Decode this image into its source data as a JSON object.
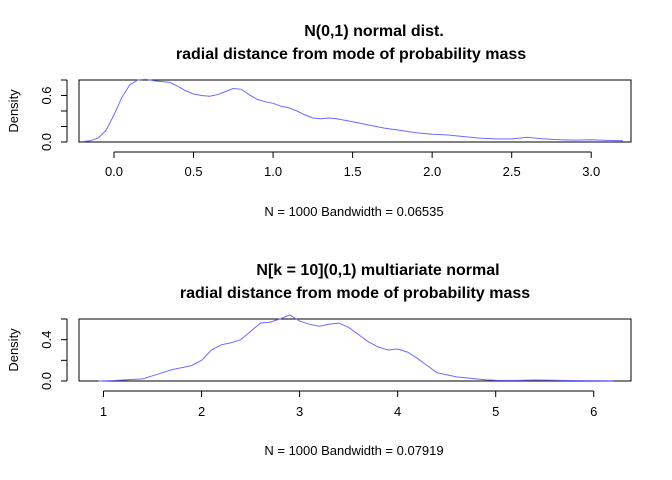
{
  "chart_data": [
    {
      "type": "line",
      "title": "N(0,1) normal dist.",
      "subtitle": "radial distance from mode of probability mass",
      "xlabel": "N = 1000   Bandwidth = 0.06535",
      "ylabel": "Density",
      "xlim": [
        -0.22,
        3.25
      ],
      "ylim": [
        0,
        0.8
      ],
      "xticks": [
        0.0,
        0.5,
        1.0,
        1.5,
        2.0,
        2.5,
        3.0
      ],
      "xtick_labels": [
        "0.0",
        "0.5",
        "1.0",
        "1.5",
        "2.0",
        "2.5",
        "3.0"
      ],
      "yticks": [
        0.0,
        0.2,
        0.4,
        0.6,
        0.8
      ],
      "ytick_labels": [
        "0.0",
        "",
        "",
        "0.6",
        ""
      ],
      "grid": false,
      "series": [
        {
          "color": "#6b6bff",
          "x": [
            -0.2,
            -0.15,
            -0.1,
            -0.05,
            0.0,
            0.05,
            0.1,
            0.15,
            0.2,
            0.25,
            0.3,
            0.35,
            0.4,
            0.45,
            0.5,
            0.55,
            0.6,
            0.65,
            0.7,
            0.75,
            0.8,
            0.85,
            0.9,
            0.95,
            1.0,
            1.05,
            1.1,
            1.15,
            1.2,
            1.25,
            1.3,
            1.35,
            1.4,
            1.45,
            1.5,
            1.6,
            1.7,
            1.8,
            1.9,
            2.0,
            2.1,
            2.2,
            2.3,
            2.4,
            2.5,
            2.55,
            2.6,
            2.65,
            2.7,
            2.8,
            2.9,
            3.0,
            3.1,
            3.2
          ],
          "y": [
            0.005,
            0.015,
            0.05,
            0.15,
            0.35,
            0.58,
            0.74,
            0.8,
            0.81,
            0.79,
            0.78,
            0.77,
            0.72,
            0.66,
            0.62,
            0.6,
            0.59,
            0.61,
            0.65,
            0.69,
            0.68,
            0.61,
            0.55,
            0.52,
            0.5,
            0.46,
            0.44,
            0.4,
            0.35,
            0.31,
            0.3,
            0.31,
            0.3,
            0.28,
            0.26,
            0.22,
            0.18,
            0.15,
            0.12,
            0.1,
            0.09,
            0.07,
            0.05,
            0.04,
            0.04,
            0.05,
            0.06,
            0.05,
            0.04,
            0.03,
            0.025,
            0.03,
            0.02,
            0.015
          ]
        }
      ]
    },
    {
      "type": "line",
      "title": "N[k = 10](0,1) multiariate normal",
      "subtitle": "radial distance from mode of probability mass",
      "xlabel": "N = 1000   Bandwidth = 0.07919",
      "ylabel": "Density",
      "xlim": [
        0.75,
        6.38
      ],
      "ylim": [
        0,
        0.6
      ],
      "xticks": [
        1,
        2,
        3,
        4,
        5,
        6
      ],
      "xtick_labels": [
        "1",
        "2",
        "3",
        "4",
        "5",
        "6"
      ],
      "yticks": [
        0.0,
        0.2,
        0.4,
        0.6
      ],
      "ytick_labels": [
        "0.0",
        "",
        "0.4",
        ""
      ],
      "grid": false,
      "series": [
        {
          "color": "#6b6bff",
          "x": [
            0.95,
            1.1,
            1.2,
            1.3,
            1.4,
            1.5,
            1.6,
            1.7,
            1.8,
            1.9,
            2.0,
            2.1,
            2.2,
            2.3,
            2.4,
            2.5,
            2.6,
            2.7,
            2.8,
            2.9,
            3.0,
            3.1,
            3.2,
            3.3,
            3.4,
            3.5,
            3.6,
            3.7,
            3.8,
            3.9,
            4.0,
            4.1,
            4.2,
            4.3,
            4.4,
            4.5,
            4.6,
            4.7,
            4.8,
            4.9,
            5.0,
            5.2,
            5.4,
            5.6,
            5.8,
            6.0,
            6.2
          ],
          "y": [
            0.0,
            0.005,
            0.01,
            0.015,
            0.02,
            0.05,
            0.08,
            0.11,
            0.13,
            0.15,
            0.2,
            0.3,
            0.35,
            0.37,
            0.4,
            0.48,
            0.56,
            0.57,
            0.6,
            0.64,
            0.58,
            0.55,
            0.53,
            0.55,
            0.56,
            0.52,
            0.45,
            0.38,
            0.33,
            0.3,
            0.31,
            0.28,
            0.22,
            0.15,
            0.08,
            0.06,
            0.04,
            0.03,
            0.02,
            0.012,
            0.008,
            0.006,
            0.01,
            0.008,
            0.005,
            0.004,
            0.003
          ]
        }
      ]
    }
  ]
}
